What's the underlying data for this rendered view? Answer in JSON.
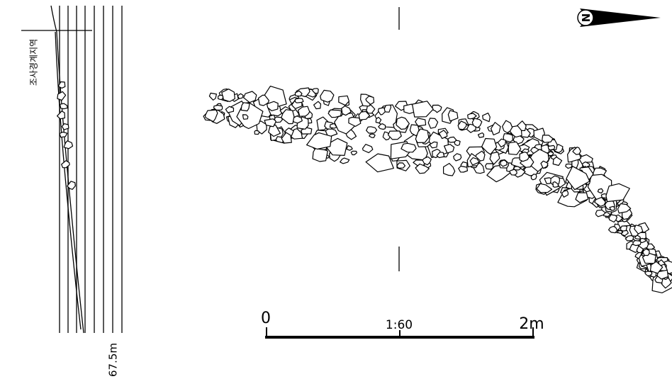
{
  "profile": {
    "label": "조사경계지역",
    "elevation": "67.5m"
  },
  "scale": {
    "start": "0",
    "ratio": "1:60",
    "end": "2m"
  },
  "north": "N"
}
